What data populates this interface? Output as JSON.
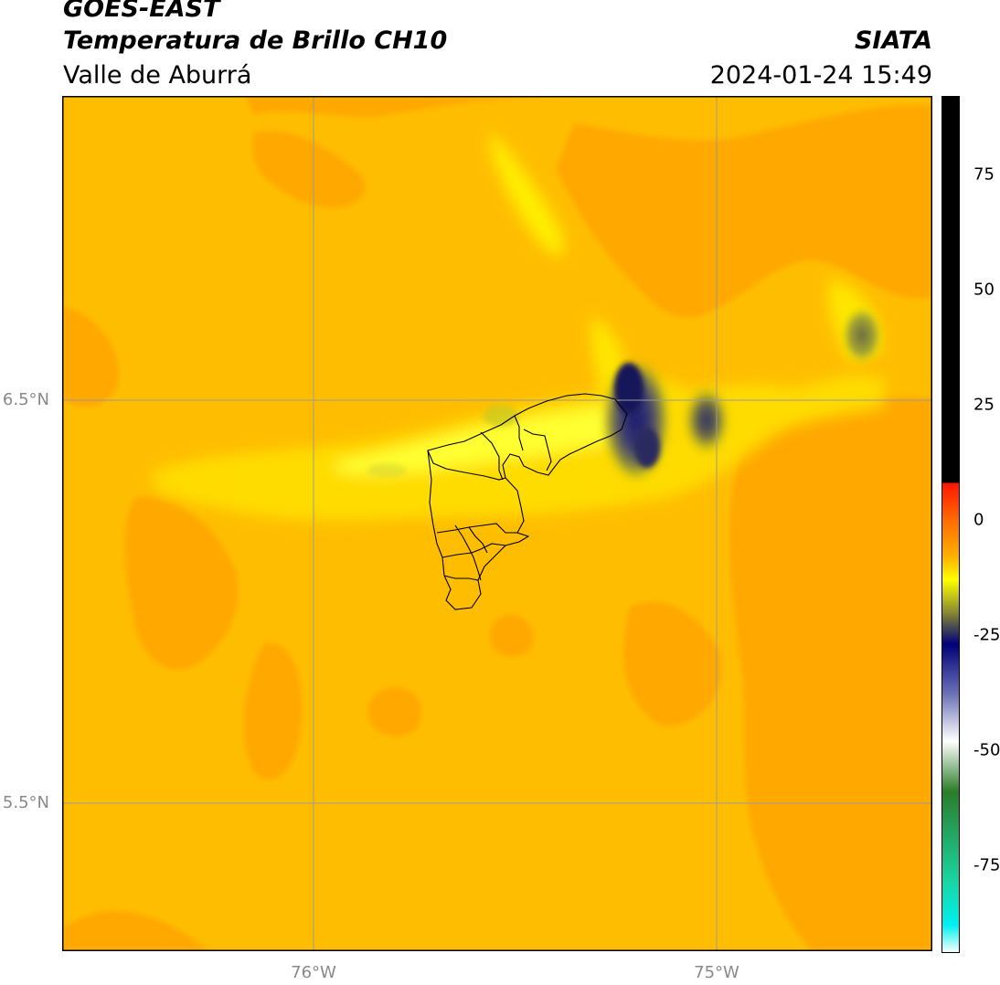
{
  "header": {
    "satellite": "GOES-EAST",
    "product": "Temperatura de Brillo CH10",
    "region": "Valle de Aburrá",
    "organization": "SIATA",
    "datetime": "2024-01-24 15:49"
  },
  "map": {
    "lat_labels": [
      "6.5°N",
      "5.5°N"
    ],
    "lon_labels": [
      "76°W",
      "75°W"
    ],
    "colors": {
      "background_field": "#ffbd00",
      "warm_region": "#ffa800",
      "moist_band": "#ffee00",
      "cold_core": "#1a1a6e",
      "gridline": "#9a9a9a",
      "boundaries": "#000000"
    }
  },
  "colorbar": {
    "ticks": [
      "75",
      "50",
      "25",
      "0",
      "-25",
      "-50",
      "-75"
    ],
    "stops": [
      {
        "value": 92,
        "color": "#000000"
      },
      {
        "value": 8,
        "color": "#000000"
      },
      {
        "value": 8,
        "color": "#ff1500"
      },
      {
        "value": 0,
        "color": "#ff6a00"
      },
      {
        "value": -8,
        "color": "#ffb000"
      },
      {
        "value": -13,
        "color": "#ffff00"
      },
      {
        "value": -20,
        "color": "#8a8a30"
      },
      {
        "value": -27,
        "color": "#00007a"
      },
      {
        "value": -38,
        "color": "#6f74b8"
      },
      {
        "value": -48,
        "color": "#ffffff"
      },
      {
        "value": -59,
        "color": "#2a7d2a"
      },
      {
        "value": -78,
        "color": "#1ad3a0"
      },
      {
        "value": -88,
        "color": "#00f0f0"
      },
      {
        "value": -94,
        "color": "#ffffff"
      }
    ]
  }
}
